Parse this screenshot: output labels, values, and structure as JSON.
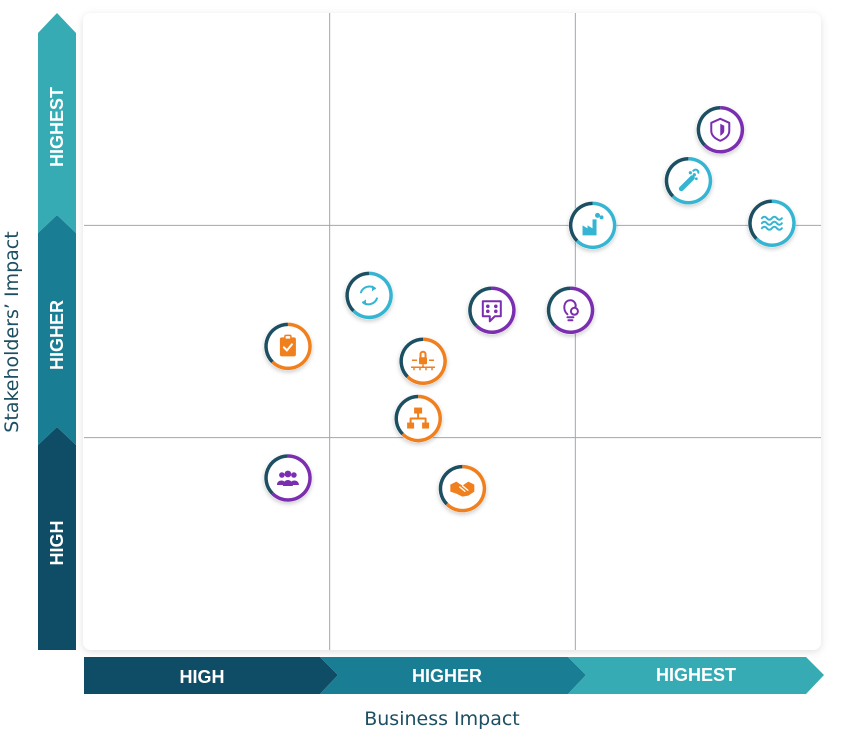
{
  "chart_data": {
    "type": "scatter",
    "xlabel": "Business Impact",
    "ylabel": "Stakeholders’ Impact",
    "x_bands": [
      "HIGH",
      "HIGHER",
      "HIGHEST"
    ],
    "y_bands": [
      "HIGH",
      "HIGHER",
      "HIGHEST"
    ],
    "xlim": [
      0,
      3
    ],
    "ylim": [
      0,
      3
    ],
    "grid": true,
    "colors": {
      "band_dark": "#0f4d66",
      "band_mid": "#197e93",
      "band_light": "#37abb4",
      "grid": "#9aa9b4",
      "orange": "#f07f1e",
      "purple": "#7b2fb0",
      "cyan": "#36b5d3",
      "ring_dark": "#1d4f63"
    },
    "points": [
      {
        "x": 2.59,
        "y": 2.45,
        "color": "purple",
        "icon": "shield-icon"
      },
      {
        "x": 2.46,
        "y": 2.21,
        "color": "cyan",
        "icon": "footprint-icon"
      },
      {
        "x": 2.8,
        "y": 2.01,
        "color": "cyan",
        "icon": "waves-icon"
      },
      {
        "x": 2.07,
        "y": 2.0,
        "color": "cyan",
        "icon": "factory-icon"
      },
      {
        "x": 1.16,
        "y": 1.67,
        "color": "cyan",
        "icon": "recycle-icon"
      },
      {
        "x": 1.66,
        "y": 1.6,
        "color": "purple",
        "icon": "chat-icon"
      },
      {
        "x": 1.98,
        "y": 1.6,
        "color": "purple",
        "icon": "idea-gear-icon"
      },
      {
        "x": 0.83,
        "y": 1.43,
        "color": "orange",
        "icon": "clipboard-check-icon"
      },
      {
        "x": 1.38,
        "y": 1.36,
        "color": "orange",
        "icon": "network-lock-icon"
      },
      {
        "x": 1.36,
        "y": 1.09,
        "color": "orange",
        "icon": "org-chart-icon"
      },
      {
        "x": 0.83,
        "y": 0.81,
        "color": "purple",
        "icon": "team-icon"
      },
      {
        "x": 1.54,
        "y": 0.76,
        "color": "orange",
        "icon": "handshake-icon"
      }
    ]
  }
}
